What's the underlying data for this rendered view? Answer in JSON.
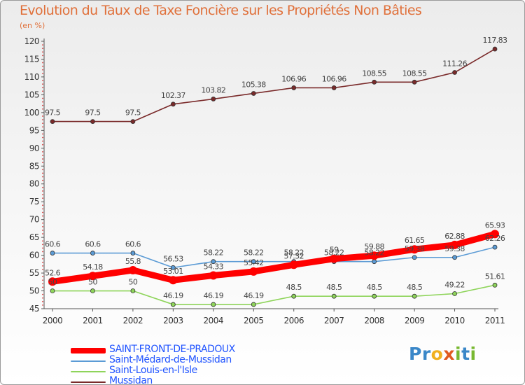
{
  "title": "Evolution du Taux de Taxe Foncière sur les Propriétés Non Bâties",
  "unit_label": "(en %)",
  "brand": {
    "logo_text": "Proxiti",
    "letters": [
      "P",
      "r",
      "o",
      "x",
      "i",
      "t",
      "i"
    ],
    "letter_colors": [
      "#3a87c8",
      "#3a87c8",
      "#f0b020",
      "#e05a20",
      "#78b830",
      "#3a87c8",
      "#78b830"
    ]
  },
  "chart_data": {
    "type": "line",
    "x": [
      "2000",
      "2001",
      "2002",
      "2003",
      "2004",
      "2005",
      "2006",
      "2007",
      "2008",
      "2009",
      "2010",
      "2011"
    ],
    "ylim": [
      45,
      120
    ],
    "yticks": [
      "45",
      "50",
      "55",
      "60",
      "65",
      "70",
      "75",
      "80",
      "85",
      "90",
      "95",
      "100",
      "105",
      "110",
      "115",
      "120"
    ],
    "grid": false,
    "legend_position": "bottom-left",
    "series": [
      {
        "name": "Mussidan",
        "color": "#7a2a2a",
        "values": [
          97.5,
          97.5,
          97.5,
          102.37,
          103.82,
          105.38,
          106.96,
          106.96,
          108.55,
          108.55,
          111.26,
          117.83
        ],
        "labels": [
          "97.5",
          "97.5",
          "97.5",
          "102.37",
          "103.82",
          "105.38",
          "106.96",
          "106.96",
          "108.55",
          "108.55",
          "111.26",
          "117.83"
        ]
      },
      {
        "name": "Saint-Médard-de-Mussidan",
        "color": "#5b9bd5",
        "values": [
          60.6,
          60.6,
          60.6,
          56.53,
          58.22,
          58.22,
          58.22,
          58.22,
          58.22,
          59.38,
          59.38,
          62.26
        ],
        "labels": [
          "60.6",
          "60.6",
          "60.6",
          "56.53",
          "58.22",
          "58.22",
          "58.22",
          "58.22",
          "58.22",
          "59.38",
          "59.38",
          "62.26"
        ]
      },
      {
        "name": "Saint-Louis-en-l'Isle",
        "color": "#8ed45a",
        "values": [
          50,
          50,
          50,
          46.19,
          46.19,
          46.19,
          48.5,
          48.5,
          48.5,
          48.5,
          49.22,
          51.61
        ],
        "labels": [
          "50",
          "50",
          "50",
          "46.19",
          "46.19",
          "46.19",
          "48.5",
          "48.5",
          "48.5",
          "48.5",
          "49.22",
          "51.61"
        ]
      },
      {
        "name": "SAINT-FRONT-DE-PRADOUX",
        "color": "#ff0000",
        "values": [
          52.6,
          54.18,
          55.8,
          53.01,
          54.33,
          55.42,
          57.32,
          59,
          59.88,
          61.65,
          62.88,
          65.93
        ],
        "labels": [
          "52.6",
          "54.18",
          "55.8",
          "53.01",
          "54.33",
          "55.42",
          "57.32",
          "59",
          "59.88",
          "61.65",
          "62.88",
          "65.93"
        ]
      }
    ]
  },
  "legend": [
    {
      "label": "SAINT-FRONT-DE-PRADOUX",
      "color": "#ff0000",
      "text_color": "#2255ff",
      "thickness": 8
    },
    {
      "label": "Saint-Médard-de-Mussidan",
      "color": "#5b9bd5",
      "text_color": "#2255ff",
      "thickness": 2
    },
    {
      "label": "Saint-Louis-en-l'Isle",
      "color": "#8ed45a",
      "text_color": "#2255ff",
      "thickness": 2
    },
    {
      "label": "Mussidan",
      "color": "#7a2a2a",
      "text_color": "#2255ff",
      "thickness": 2
    }
  ]
}
